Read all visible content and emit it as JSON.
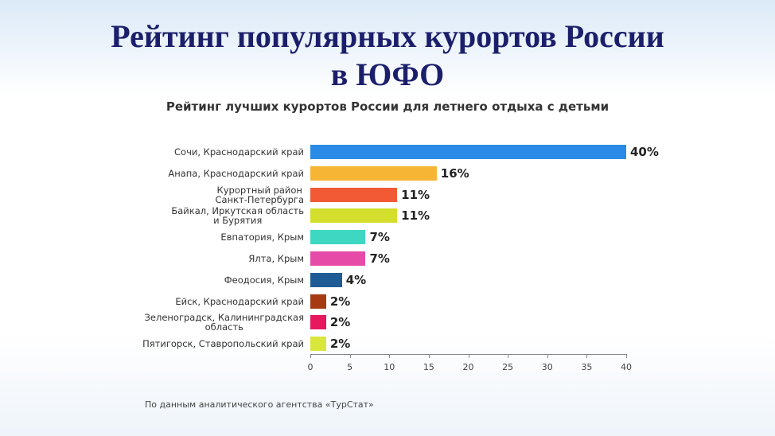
{
  "slide_title": "Рейтинг популярных курортов России\nв ЮФО",
  "chart_data": {
    "type": "bar",
    "orientation": "horizontal",
    "title": "Рейтинг лучших курортов России для летнего отдыха с детьми",
    "categories": [
      "Сочи, Краснодарский край",
      "Анапа, Краснодарский край",
      "Курортный район\nСанкт-Петербурга",
      "Байкал, Иркутская область\nи Бурятия",
      "Евпатория, Крым",
      "Ялта, Крым",
      "Феодосия, Крым",
      "Ейск, Краснодарский край",
      "Зеленоградск, Калининградская\nобласть",
      "Пятигорск, Ставропольский край"
    ],
    "values": [
      40,
      16,
      11,
      11,
      7,
      7,
      4,
      2,
      2,
      2
    ],
    "value_labels": [
      "40%",
      "16%",
      "11%",
      "11%",
      "7%",
      "7%",
      "4%",
      "2%",
      "2%",
      "2%"
    ],
    "colors": [
      "#2a8be6",
      "#f7b536",
      "#f25a36",
      "#d3df2c",
      "#3ed8c2",
      "#e64ba8",
      "#1f5c96",
      "#a63a12",
      "#e8185e",
      "#d9e63c"
    ],
    "xlim": [
      0,
      40
    ],
    "xticks": [
      0,
      5,
      10,
      15,
      20,
      25,
      30,
      35,
      40
    ],
    "source": "По данным аналитического агентства «ТурСтат»"
  }
}
